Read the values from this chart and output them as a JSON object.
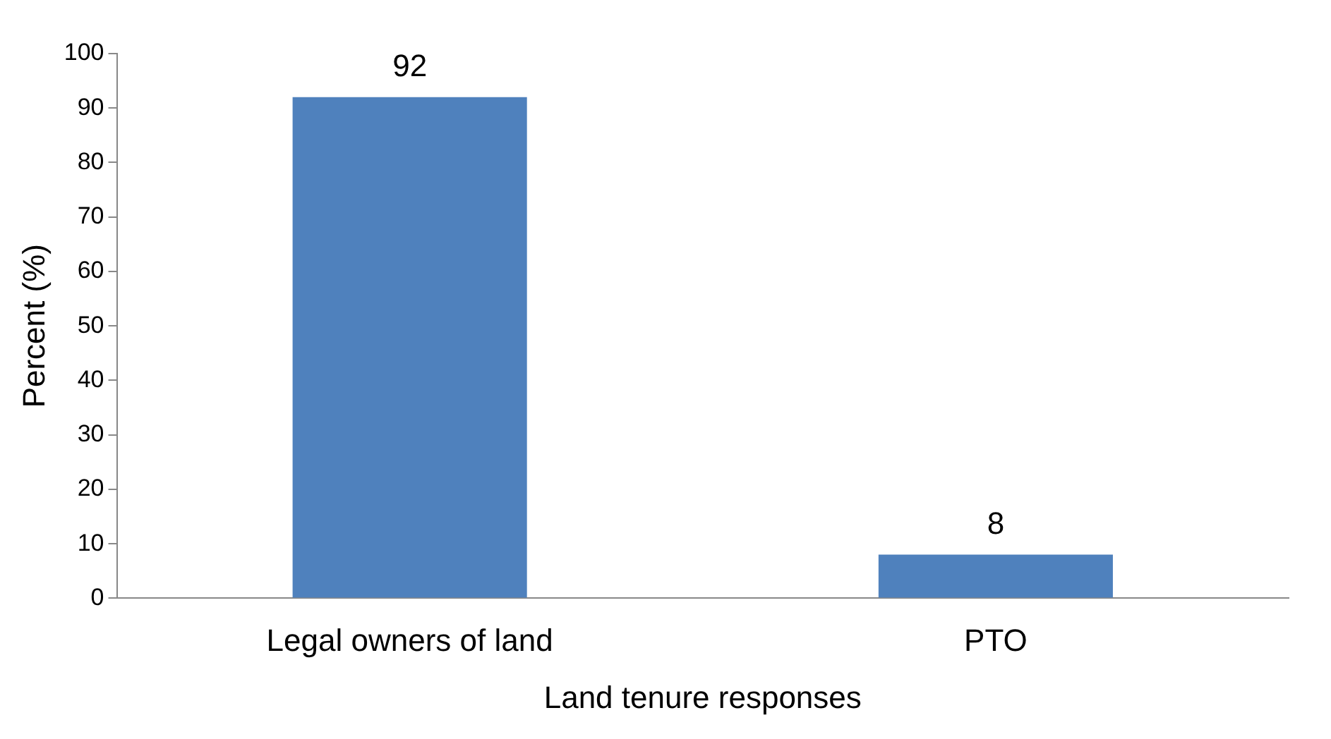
{
  "chart_data": {
    "type": "bar",
    "xlabel": "Land tenure responses",
    "ylabel": "Percent (%)",
    "categories": [
      "Legal owners of land",
      "PTO"
    ],
    "values": [
      92,
      8
    ],
    "color": "#4f81bd",
    "ylim": [
      0,
      100
    ],
    "yticks": [
      0,
      10,
      20,
      30,
      40,
      50,
      60,
      70,
      80,
      90,
      100
    ],
    "data_labels": true,
    "grid": false,
    "legend": false
  }
}
